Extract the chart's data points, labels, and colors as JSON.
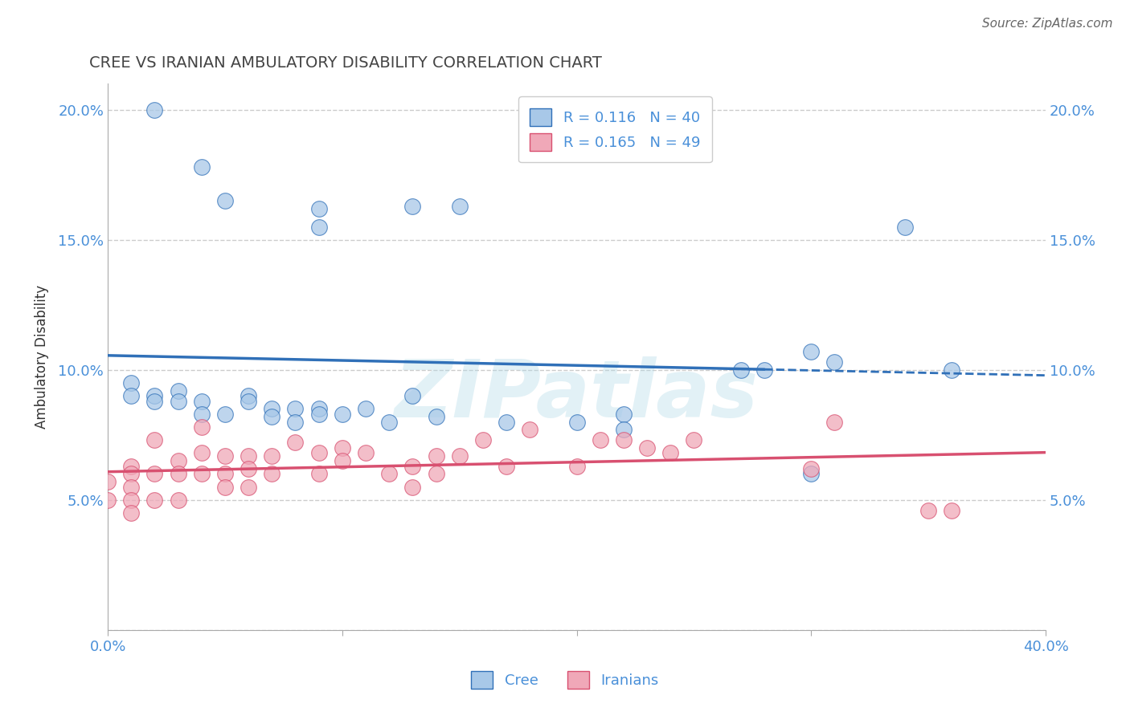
{
  "title": "CREE VS IRANIAN AMBULATORY DISABILITY CORRELATION CHART",
  "source": "Source: ZipAtlas.com",
  "ylabel_label": "Ambulatory Disability",
  "xlim": [
    0.0,
    0.4
  ],
  "ylim": [
    0.0,
    0.21
  ],
  "x_ticks": [
    0.0,
    0.1,
    0.2,
    0.3,
    0.4
  ],
  "y_ticks": [
    0.0,
    0.05,
    0.1,
    0.15,
    0.2
  ],
  "background_color": "#ffffff",
  "grid_color": "#cccccc",
  "cree_color": "#a8c8e8",
  "iranian_color": "#f0a8b8",
  "cree_line_color": "#3070b8",
  "iranian_line_color": "#d85070",
  "legend_R_cree": "0.116",
  "legend_N_cree": "40",
  "legend_R_iranian": "0.165",
  "legend_N_iranian": "49",
  "watermark": "ZIPatlas",
  "title_color": "#444444",
  "axis_color": "#4a90d9",
  "cree_points_x": [
    0.02,
    0.04,
    0.05,
    0.09,
    0.09,
    0.13,
    0.15,
    0.01,
    0.01,
    0.02,
    0.02,
    0.03,
    0.03,
    0.04,
    0.04,
    0.05,
    0.06,
    0.06,
    0.07,
    0.07,
    0.08,
    0.08,
    0.09,
    0.09,
    0.1,
    0.11,
    0.12,
    0.13,
    0.14,
    0.17,
    0.2,
    0.22,
    0.22,
    0.27,
    0.28,
    0.3,
    0.3,
    0.31,
    0.34,
    0.36
  ],
  "cree_points_y": [
    0.2,
    0.178,
    0.165,
    0.162,
    0.155,
    0.163,
    0.163,
    0.095,
    0.09,
    0.09,
    0.088,
    0.092,
    0.088,
    0.088,
    0.083,
    0.083,
    0.09,
    0.088,
    0.085,
    0.082,
    0.085,
    0.08,
    0.085,
    0.083,
    0.083,
    0.085,
    0.08,
    0.09,
    0.082,
    0.08,
    0.08,
    0.083,
    0.077,
    0.1,
    0.1,
    0.06,
    0.107,
    0.103,
    0.155,
    0.1
  ],
  "iranian_points_x": [
    0.0,
    0.0,
    0.01,
    0.01,
    0.01,
    0.01,
    0.01,
    0.02,
    0.02,
    0.02,
    0.03,
    0.03,
    0.03,
    0.04,
    0.04,
    0.04,
    0.05,
    0.05,
    0.05,
    0.06,
    0.06,
    0.06,
    0.07,
    0.07,
    0.08,
    0.09,
    0.09,
    0.1,
    0.1,
    0.11,
    0.12,
    0.13,
    0.13,
    0.14,
    0.14,
    0.15,
    0.16,
    0.17,
    0.18,
    0.2,
    0.21,
    0.22,
    0.23,
    0.24,
    0.25,
    0.3,
    0.31,
    0.35,
    0.36
  ],
  "iranian_points_y": [
    0.057,
    0.05,
    0.063,
    0.06,
    0.055,
    0.05,
    0.045,
    0.073,
    0.06,
    0.05,
    0.065,
    0.06,
    0.05,
    0.078,
    0.068,
    0.06,
    0.067,
    0.06,
    0.055,
    0.067,
    0.062,
    0.055,
    0.067,
    0.06,
    0.072,
    0.068,
    0.06,
    0.07,
    0.065,
    0.068,
    0.06,
    0.063,
    0.055,
    0.067,
    0.06,
    0.067,
    0.073,
    0.063,
    0.077,
    0.063,
    0.073,
    0.073,
    0.07,
    0.068,
    0.073,
    0.062,
    0.08,
    0.046,
    0.046
  ]
}
